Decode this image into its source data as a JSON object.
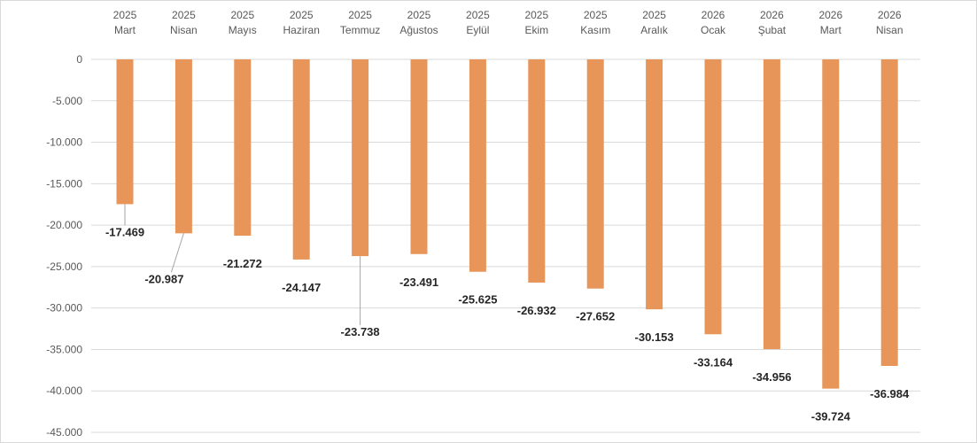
{
  "chart_data": {
    "type": "bar",
    "categories": [
      [
        "2025",
        "Mart"
      ],
      [
        "2025",
        "Nisan"
      ],
      [
        "2025",
        "Mayıs"
      ],
      [
        "2025",
        "Haziran"
      ],
      [
        "2025",
        "Temmuz"
      ],
      [
        "2025",
        "Ağustos"
      ],
      [
        "2025",
        "Eylül"
      ],
      [
        "2025",
        "Ekim"
      ],
      [
        "2025",
        "Kasım"
      ],
      [
        "2025",
        "Aralık"
      ],
      [
        "2026",
        "Ocak"
      ],
      [
        "2026",
        "Şubat"
      ],
      [
        "2026",
        "Mart"
      ],
      [
        "2026",
        "Nisan"
      ]
    ],
    "values": [
      -17469,
      -20987,
      -21272,
      -24147,
      -23738,
      -23491,
      -25625,
      -26932,
      -27652,
      -30153,
      -33164,
      -34956,
      -39724,
      -36984
    ],
    "data_labels": [
      "-17.469",
      "-20.987",
      "-21.272",
      "-24.147",
      "-23.738",
      "-23.491",
      "-25.625",
      "-26.932",
      "-27.652",
      "-30.153",
      "-33.164",
      "-34.956",
      "-39.724",
      "-36.984"
    ],
    "y_ticks": [
      "0",
      "-5.000",
      "-10.000",
      "-15.000",
      "-20.000",
      "-25.000",
      "-30.000",
      "-35.000",
      "-40.000",
      "-45.000"
    ],
    "ylim": [
      -45000,
      0
    ],
    "grid": true,
    "category_axis_position": "top",
    "bar_color": "#E8955A",
    "gridline_color": "#d9d9d9",
    "title": "",
    "xlabel": "",
    "ylabel": ""
  }
}
